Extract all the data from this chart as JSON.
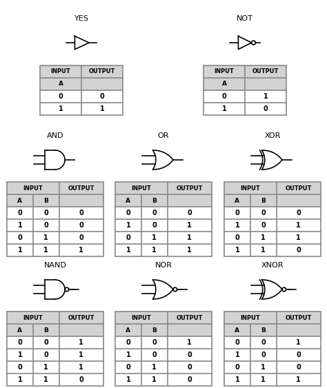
{
  "bg_color": "#ffffff",
  "table_header_color": "#d3d3d3",
  "table_border_color": "#888888",
  "text_color": "#000000",
  "gate_color": "#000000",
  "gates": [
    {
      "name": "YES",
      "type": "buffer",
      "col": 0,
      "row": 0,
      "inputs": [
        "A"
      ],
      "truth_table": [
        [
          "0",
          "0"
        ],
        [
          "1",
          "1"
        ]
      ]
    },
    {
      "name": "NOT",
      "type": "not",
      "col": 1,
      "row": 0,
      "inputs": [
        "A"
      ],
      "truth_table": [
        [
          "0",
          "1"
        ],
        [
          "1",
          "0"
        ]
      ]
    },
    {
      "name": "AND",
      "type": "and",
      "col": 0,
      "row": 1,
      "inputs": [
        "A",
        "B"
      ],
      "truth_table": [
        [
          "0",
          "0",
          "0"
        ],
        [
          "1",
          "0",
          "0"
        ],
        [
          "0",
          "1",
          "0"
        ],
        [
          "1",
          "1",
          "1"
        ]
      ]
    },
    {
      "name": "OR",
      "type": "or",
      "col": 1,
      "row": 1,
      "inputs": [
        "A",
        "B"
      ],
      "truth_table": [
        [
          "0",
          "0",
          "0"
        ],
        [
          "1",
          "0",
          "1"
        ],
        [
          "0",
          "1",
          "1"
        ],
        [
          "1",
          "1",
          "1"
        ]
      ]
    },
    {
      "name": "XOR",
      "type": "xor",
      "col": 2,
      "row": 1,
      "inputs": [
        "A",
        "B"
      ],
      "truth_table": [
        [
          "0",
          "0",
          "0"
        ],
        [
          "1",
          "0",
          "1"
        ],
        [
          "0",
          "1",
          "1"
        ],
        [
          "1",
          "1",
          "0"
        ]
      ]
    },
    {
      "name": "NAND",
      "type": "nand",
      "col": 0,
      "row": 2,
      "inputs": [
        "A",
        "B"
      ],
      "truth_table": [
        [
          "0",
          "0",
          "1"
        ],
        [
          "1",
          "0",
          "1"
        ],
        [
          "0",
          "1",
          "1"
        ],
        [
          "1",
          "1",
          "0"
        ]
      ]
    },
    {
      "name": "NOR",
      "type": "nor",
      "col": 1,
      "row": 2,
      "inputs": [
        "A",
        "B"
      ],
      "truth_table": [
        [
          "0",
          "0",
          "1"
        ],
        [
          "1",
          "0",
          "0"
        ],
        [
          "0",
          "1",
          "0"
        ],
        [
          "1",
          "1",
          "0"
        ]
      ]
    },
    {
      "name": "XNOR",
      "type": "xnor",
      "col": 2,
      "row": 2,
      "inputs": [
        "A",
        "B"
      ],
      "truth_table": [
        [
          "0",
          "0",
          "1"
        ],
        [
          "1",
          "0",
          "0"
        ],
        [
          "0",
          "1",
          "0"
        ],
        [
          "1",
          "1",
          "1"
        ]
      ]
    }
  ]
}
